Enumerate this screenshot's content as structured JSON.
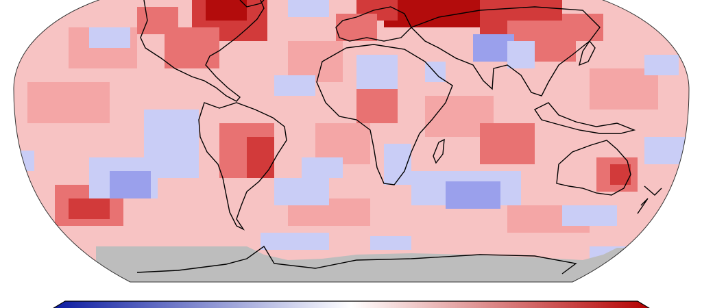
{
  "map": {
    "type": "global temperature anomaly map (Robinson-style projection)",
    "colors": {
      "ocean_base": "#f7c3c3",
      "warm_light": "#f4a6a6",
      "warm_mid": "#e87272",
      "warm_strong": "#d23a3a",
      "warm_extreme": "#b30c0c",
      "cool_light": "#c9cdf6",
      "cool_mid": "#9aa0ec",
      "no_data": "#bdbdbd",
      "coastline": "#000000"
    },
    "colorbar": {
      "left_color": "#0a1aa0",
      "mid_color": "#ffffff",
      "right_color": "#b40000"
    }
  }
}
